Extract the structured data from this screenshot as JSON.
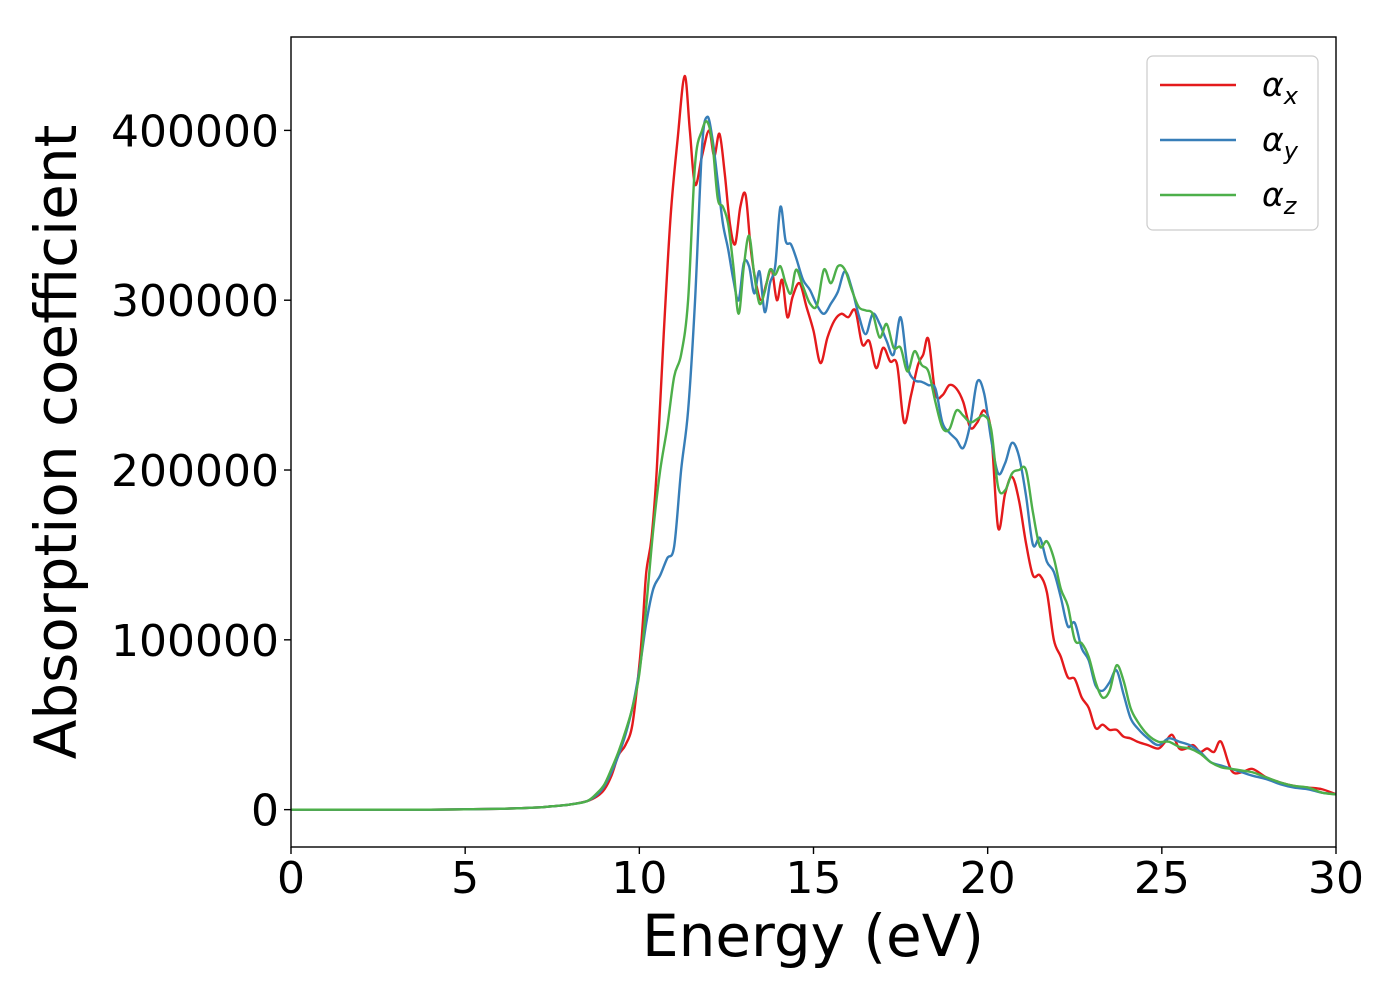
{
  "chart_data": {
    "type": "line",
    "title": "",
    "xlabel": "Energy (eV)",
    "ylabel": "Absorption coefficient",
    "xlim": [
      0,
      30
    ],
    "ylim": [
      -22000,
      455000
    ],
    "x_ticks": [
      0,
      5,
      10,
      15,
      20,
      25,
      30
    ],
    "x_tick_labels": [
      "0",
      "5",
      "10",
      "15",
      "20",
      "25",
      "30"
    ],
    "y_ticks": [
      0,
      100000,
      200000,
      300000,
      400000
    ],
    "y_tick_labels": [
      "0",
      "100000",
      "200000",
      "300000",
      "400000"
    ],
    "grid": false,
    "legend_position": "top-right",
    "series": [
      {
        "name": "α_x",
        "label_main": "α",
        "label_sub": "x",
        "color": "#e41a1c",
        "x": [
          0,
          2,
          4,
          6,
          7,
          7.5,
          8,
          8.5,
          8.8,
          9,
          9.2,
          9.4,
          9.6,
          9.8,
          10,
          10.1,
          10.2,
          10.35,
          10.5,
          10.7,
          10.9,
          11.1,
          11.3,
          11.45,
          11.6,
          11.8,
          12.0,
          12.15,
          12.3,
          12.45,
          12.6,
          12.75,
          12.9,
          13.05,
          13.2,
          13.35,
          13.5,
          13.65,
          13.8,
          13.95,
          14.1,
          14.25,
          14.4,
          14.6,
          14.8,
          15.0,
          15.2,
          15.4,
          15.6,
          15.8,
          16.0,
          16.2,
          16.4,
          16.6,
          16.8,
          17.0,
          17.2,
          17.4,
          17.6,
          17.8,
          18.0,
          18.15,
          18.3,
          18.5,
          18.7,
          18.9,
          19.1,
          19.3,
          19.5,
          19.7,
          19.9,
          20.1,
          20.3,
          20.5,
          20.7,
          20.9,
          21.1,
          21.3,
          21.5,
          21.7,
          21.9,
          22.1,
          22.3,
          22.5,
          22.7,
          22.9,
          23.1,
          23.3,
          23.5,
          23.7,
          23.9,
          24.1,
          24.3,
          24.6,
          24.9,
          25.1,
          25.3,
          25.5,
          25.7,
          25.9,
          26.1,
          26.3,
          26.5,
          26.7,
          27.0,
          27.3,
          27.6,
          28.0,
          28.4,
          28.8,
          29.2,
          29.6,
          30.0
        ],
        "values": [
          0,
          0,
          0,
          500,
          1200,
          2000,
          3000,
          5000,
          8000,
          12000,
          20000,
          32000,
          38000,
          50000,
          85000,
          110000,
          140000,
          160000,
          200000,
          280000,
          350000,
          395000,
          432000,
          400000,
          368000,
          385000,
          400000,
          385000,
          398000,
          375000,
          345000,
          333000,
          355000,
          362000,
          330000,
          310000,
          300000,
          310000,
          318000,
          300000,
          312000,
          290000,
          302000,
          310000,
          296000,
          282000,
          263000,
          278000,
          288000,
          292000,
          290000,
          294000,
          274000,
          276000,
          260000,
          272000,
          264000,
          262000,
          228000,
          244000,
          262000,
          268000,
          277000,
          245000,
          244000,
          250000,
          248000,
          240000,
          225000,
          228000,
          235000,
          222000,
          166000,
          186000,
          196000,
          182000,
          157000,
          138000,
          138000,
          128000,
          100000,
          90000,
          78000,
          77000,
          66000,
          60000,
          48000,
          50000,
          47000,
          47000,
          43000,
          42000,
          40000,
          38000,
          36000,
          40000,
          44000,
          36000,
          36000,
          38000,
          34000,
          36000,
          34000,
          40000,
          23000,
          22000,
          24000,
          19000,
          16000,
          14000,
          13000,
          12000,
          9000
        ]
      },
      {
        "name": "α_y",
        "label_main": "α",
        "label_sub": "y",
        "color": "#377eb8",
        "x": [
          0,
          2,
          4,
          6,
          7,
          7.5,
          8,
          8.5,
          8.8,
          9,
          9.2,
          9.4,
          9.6,
          9.8,
          10,
          10.2,
          10.4,
          10.6,
          10.8,
          11.0,
          11.2,
          11.4,
          11.6,
          11.8,
          11.95,
          12.1,
          12.25,
          12.4,
          12.55,
          12.7,
          12.85,
          13.0,
          13.15,
          13.3,
          13.45,
          13.6,
          13.75,
          13.9,
          14.05,
          14.2,
          14.35,
          14.5,
          14.7,
          14.9,
          15.1,
          15.3,
          15.5,
          15.7,
          15.9,
          16.1,
          16.3,
          16.5,
          16.7,
          16.9,
          17.1,
          17.3,
          17.5,
          17.7,
          17.9,
          18.1,
          18.3,
          18.5,
          18.7,
          18.9,
          19.1,
          19.3,
          19.5,
          19.7,
          19.9,
          20.1,
          20.3,
          20.5,
          20.7,
          20.9,
          21.1,
          21.3,
          21.5,
          21.7,
          21.9,
          22.1,
          22.3,
          22.5,
          22.7,
          22.9,
          23.1,
          23.3,
          23.5,
          23.7,
          23.9,
          24.1,
          24.3,
          24.6,
          24.9,
          25.2,
          25.5,
          25.8,
          26.1,
          26.4,
          26.7,
          27.0,
          27.3,
          27.6,
          28.0,
          28.4,
          28.8,
          29.2,
          29.6,
          30.0
        ],
        "values": [
          0,
          0,
          0,
          500,
          1200,
          2000,
          3000,
          5000,
          9000,
          14000,
          22000,
          32000,
          44000,
          60000,
          82000,
          110000,
          130000,
          138000,
          148000,
          155000,
          200000,
          235000,
          300000,
          390000,
          408000,
          395000,
          370000,
          345000,
          330000,
          312000,
          300000,
          322000,
          320000,
          304000,
          317000,
          293000,
          310000,
          320000,
          355000,
          335000,
          333000,
          325000,
          312000,
          306000,
          297000,
          292000,
          298000,
          305000,
          317000,
          307000,
          291000,
          280000,
          292000,
          286000,
          276000,
          268000,
          290000,
          261000,
          253000,
          252000,
          250000,
          248000,
          228000,
          222000,
          218000,
          213000,
          227000,
          252000,
          245000,
          218000,
          198000,
          204000,
          216000,
          208000,
          185000,
          156000,
          160000,
          146000,
          140000,
          125000,
          108000,
          110000,
          95000,
          88000,
          73000,
          70000,
          75000,
          82000,
          68000,
          54000,
          48000,
          42000,
          38000,
          42000,
          40000,
          38000,
          34000,
          28000,
          26000,
          24000,
          22000,
          20000,
          18000,
          15000,
          13000,
          12000,
          10000,
          9000
        ]
      },
      {
        "name": "α_z",
        "label_main": "α",
        "label_sub": "z",
        "color": "#4daf4a",
        "x": [
          0,
          2,
          4,
          6,
          7,
          7.5,
          8,
          8.5,
          8.8,
          9,
          9.2,
          9.4,
          9.6,
          9.8,
          10,
          10.2,
          10.4,
          10.6,
          10.8,
          11.0,
          11.2,
          11.4,
          11.6,
          11.8,
          11.95,
          12.1,
          12.25,
          12.4,
          12.55,
          12.7,
          12.85,
          13.0,
          13.15,
          13.3,
          13.45,
          13.6,
          13.75,
          13.9,
          14.05,
          14.2,
          14.35,
          14.5,
          14.7,
          14.9,
          15.1,
          15.3,
          15.5,
          15.7,
          15.9,
          16.1,
          16.3,
          16.5,
          16.7,
          16.9,
          17.1,
          17.3,
          17.5,
          17.7,
          17.9,
          18.1,
          18.3,
          18.5,
          18.7,
          18.9,
          19.1,
          19.3,
          19.5,
          19.7,
          19.9,
          20.1,
          20.3,
          20.5,
          20.7,
          20.9,
          21.1,
          21.3,
          21.5,
          21.7,
          21.9,
          22.1,
          22.3,
          22.5,
          22.7,
          22.9,
          23.1,
          23.3,
          23.5,
          23.7,
          23.9,
          24.1,
          24.3,
          24.6,
          24.9,
          25.2,
          25.5,
          25.8,
          26.1,
          26.4,
          26.7,
          27.0,
          27.3,
          27.6,
          28.0,
          28.4,
          28.8,
          29.2,
          29.6,
          30.0
        ],
        "values": [
          0,
          0,
          0,
          500,
          1200,
          2000,
          3000,
          5000,
          10000,
          15000,
          24000,
          34000,
          46000,
          60000,
          80000,
          120000,
          165000,
          200000,
          225000,
          255000,
          268000,
          300000,
          380000,
          400000,
          405000,
          392000,
          360000,
          355000,
          345000,
          320000,
          292000,
          320000,
          338000,
          315000,
          298000,
          305000,
          318000,
          315000,
          320000,
          310000,
          304000,
          318000,
          308000,
          298000,
          297000,
          318000,
          310000,
          320000,
          318000,
          306000,
          296000,
          294000,
          292000,
          278000,
          286000,
          272000,
          272000,
          258000,
          270000,
          262000,
          258000,
          240000,
          225000,
          224000,
          235000,
          232000,
          228000,
          230000,
          232000,
          224000,
          190000,
          188000,
          198000,
          200000,
          200000,
          175000,
          155000,
          158000,
          148000,
          130000,
          120000,
          100000,
          98000,
          90000,
          75000,
          66000,
          70000,
          85000,
          76000,
          60000,
          52000,
          44000,
          40000,
          40000,
          37000,
          36000,
          33000,
          28000,
          25000,
          24000,
          23000,
          22000,
          19000,
          16000,
          14000,
          13000,
          10000,
          9000
        ]
      }
    ]
  }
}
